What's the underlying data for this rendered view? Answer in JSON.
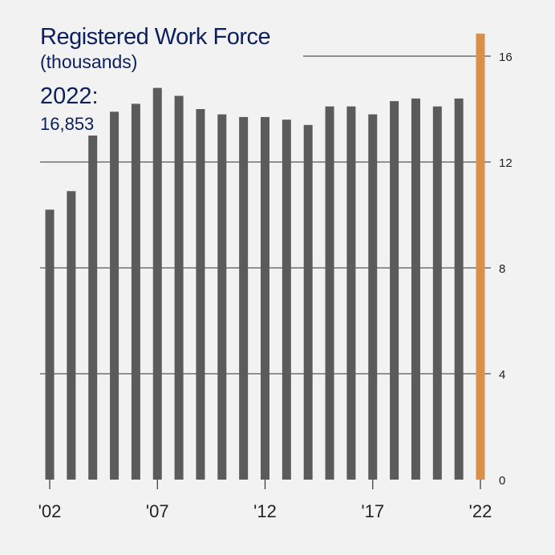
{
  "chart_data": {
    "type": "bar",
    "title": "Registered Work Force",
    "subtitle": "(thousands)",
    "highlight_label": "2022:",
    "highlight_value": "16,853",
    "categories": [
      "2002",
      "2003",
      "2004",
      "2005",
      "2006",
      "2007",
      "2008",
      "2009",
      "2010",
      "2011",
      "2012",
      "2013",
      "2014",
      "2015",
      "2016",
      "2017",
      "2018",
      "2019",
      "2020",
      "2021",
      "2022"
    ],
    "values": [
      10.2,
      10.9,
      13.0,
      13.9,
      14.2,
      14.8,
      14.5,
      14.0,
      13.8,
      13.7,
      13.7,
      13.6,
      13.4,
      14.1,
      14.1,
      13.8,
      14.3,
      14.4,
      14.1,
      14.4,
      16.853
    ],
    "x_tick_labels": [
      {
        "category": "2002",
        "label": "'02"
      },
      {
        "category": "2007",
        "label": "'07"
      },
      {
        "category": "2012",
        "label": "'12"
      },
      {
        "category": "2017",
        "label": "'17"
      },
      {
        "category": "2022",
        "label": "'22"
      }
    ],
    "y_ticks": [
      0,
      4,
      8,
      12,
      16
    ],
    "ylim": [
      0,
      16.853
    ],
    "y_axis_position": "right",
    "grid": true,
    "colors": {
      "bar": "#5b5b5b",
      "highlight_bar": "#d9914a",
      "grid": "#555555",
      "title": "#0c1f5e",
      "background": "#f2f2f2",
      "tick_text": "#222222"
    }
  }
}
